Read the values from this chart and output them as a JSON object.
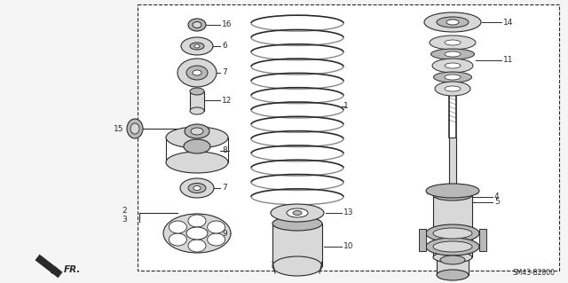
{
  "bg_color": "#f5f5f5",
  "white": "#ffffff",
  "line_color": "#2a2a2a",
  "gray_light": "#d8d8d8",
  "gray_mid": "#b8b8b8",
  "gray_dark": "#888888",
  "diagram_code": "SM43-B2800",
  "fr_label": "FR.",
  "box_border": "#555555",
  "figw": 6.4,
  "figh": 3.19,
  "dpi": 100
}
